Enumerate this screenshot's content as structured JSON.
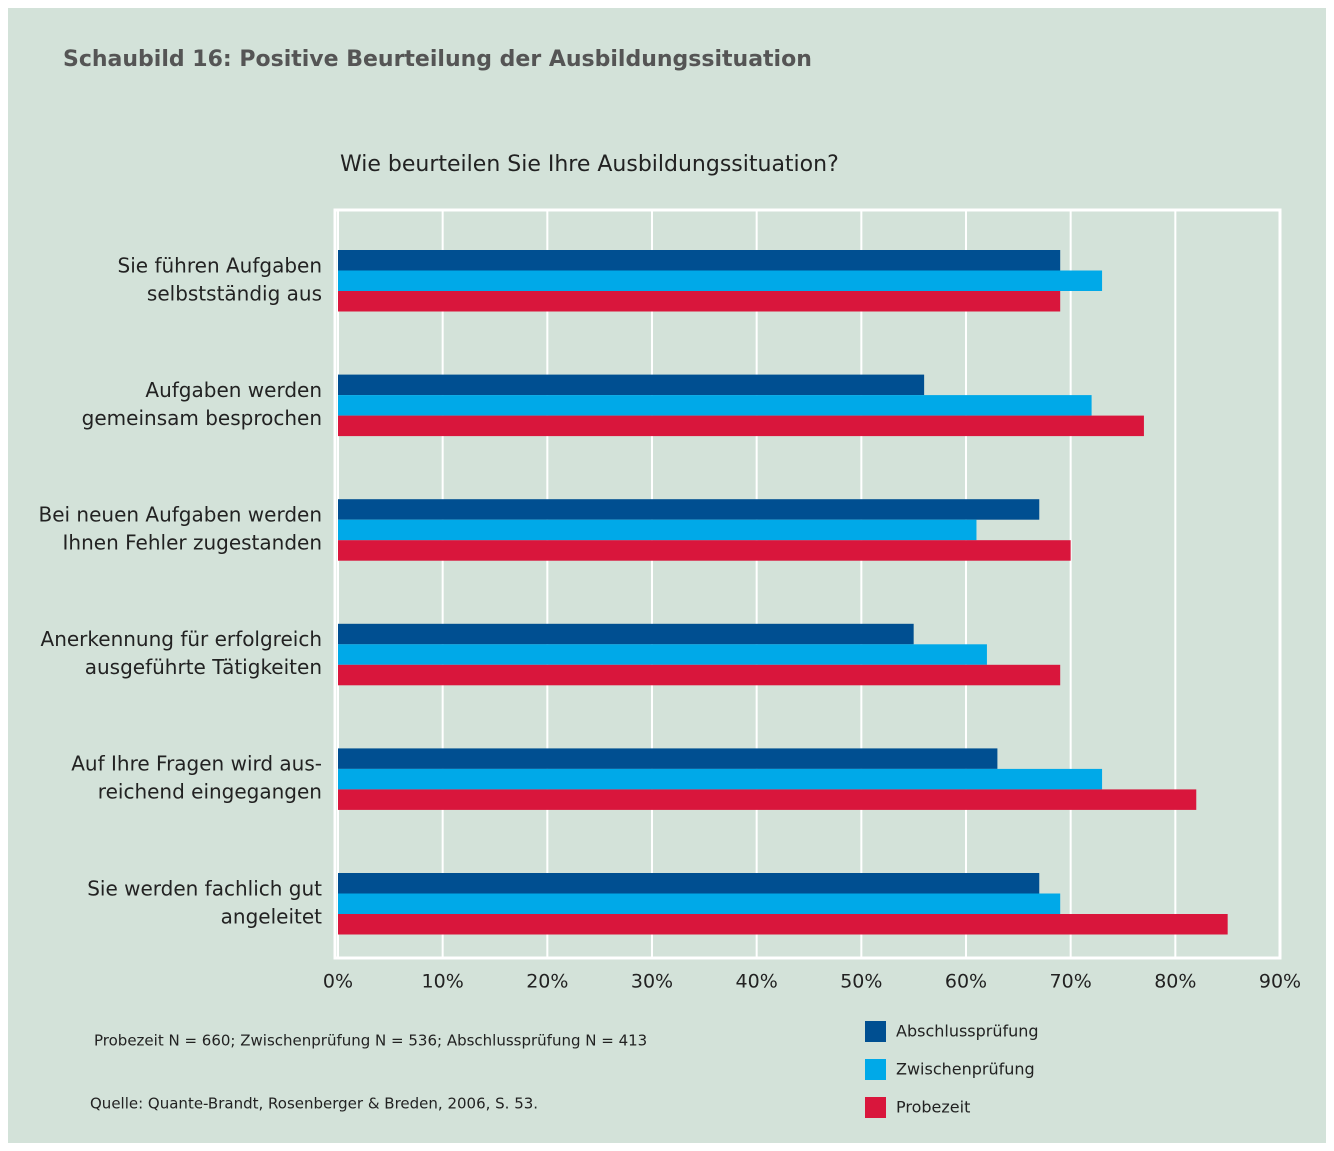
{
  "chart_data": {
    "type": "bar",
    "orientation": "horizontal",
    "title": "Schaubild 16: Positive Beurteilung der Ausbildungssituation",
    "subtitle": "Wie beurteilen Sie Ihre Ausbildungssituation?",
    "categories": [
      [
        "Sie führen Aufgaben",
        "selbstständig aus"
      ],
      [
        "Aufgaben werden",
        "gemeinsam besprochen"
      ],
      [
        "Bei neuen Aufgaben werden",
        "Ihnen Fehler zugestanden"
      ],
      [
        "Anerkennung für erfolgreich",
        "ausgeführte Tätigkeiten"
      ],
      [
        "Auf Ihre Fragen wird aus-",
        "reichend eingegangen"
      ],
      [
        "Sie werden fachlich gut",
        "angeleitet"
      ]
    ],
    "series": [
      {
        "name": "Abschlussprüfung",
        "color": "#004f91",
        "values": [
          69,
          56,
          67,
          55,
          63,
          67
        ]
      },
      {
        "name": "Zwischenprüfung",
        "color": "#00a9e8",
        "values": [
          73,
          72,
          61,
          62,
          73,
          69
        ]
      },
      {
        "name": "Probezeit",
        "color": "#d9163c",
        "values": [
          69,
          77,
          70,
          69,
          82,
          85
        ]
      }
    ],
    "xlim": [
      0,
      90
    ],
    "xticks": [
      {
        "value": 0,
        "label": "0%"
      },
      {
        "value": 10,
        "label": "10%"
      },
      {
        "value": 20,
        "label": "20%"
      },
      {
        "value": 30,
        "label": "30%"
      },
      {
        "value": 40,
        "label": "40%"
      },
      {
        "value": 50,
        "label": "50%"
      },
      {
        "value": 60,
        "label": "60%"
      },
      {
        "value": 70,
        "label": "70%"
      },
      {
        "value": 80,
        "label": "80%"
      },
      {
        "value": 90,
        "label": "90%"
      }
    ],
    "grid": true,
    "notes": [
      "Probezeit N = 660; Zwischenprüfung N = 536; Abschlussprüfung N = 413",
      "Quelle: Quante-Brandt, Rosenberger & Breden, 2006, S. 53."
    ]
  }
}
